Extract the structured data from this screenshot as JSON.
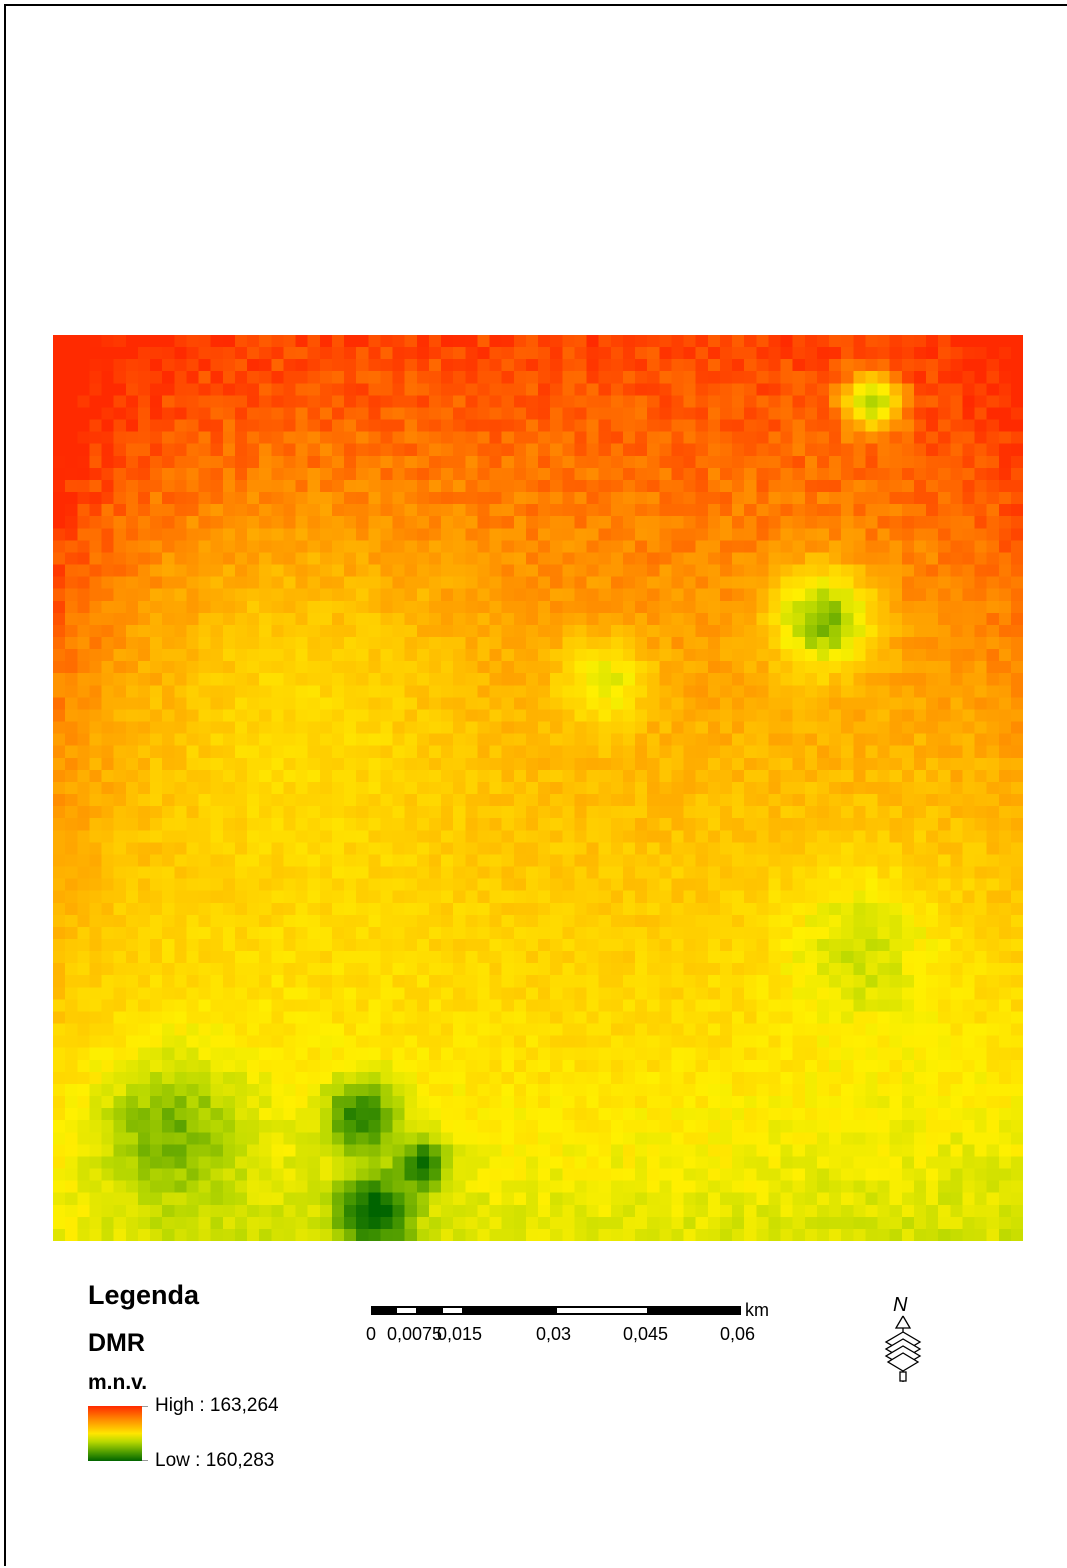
{
  "legend": {
    "title": "Legenda",
    "layer": "DMR",
    "field": "m.n.v.",
    "high_label": "High : 163,264",
    "low_label": "Low : 160,283",
    "ramp_colors": [
      "#ff2a00",
      "#ff8c00",
      "#ffe600",
      "#b8d800",
      "#4a9a00",
      "#006400"
    ]
  },
  "scalebar": {
    "ticks": [
      "0",
      "0,0075",
      "0,015",
      "0,03",
      "0,045",
      "0,06"
    ],
    "unit": "km"
  },
  "north_arrow": {
    "label": "N",
    "icon": "north-arrow-icon"
  },
  "raster": {
    "high_value": 163.264,
    "low_value": 160.283
  }
}
